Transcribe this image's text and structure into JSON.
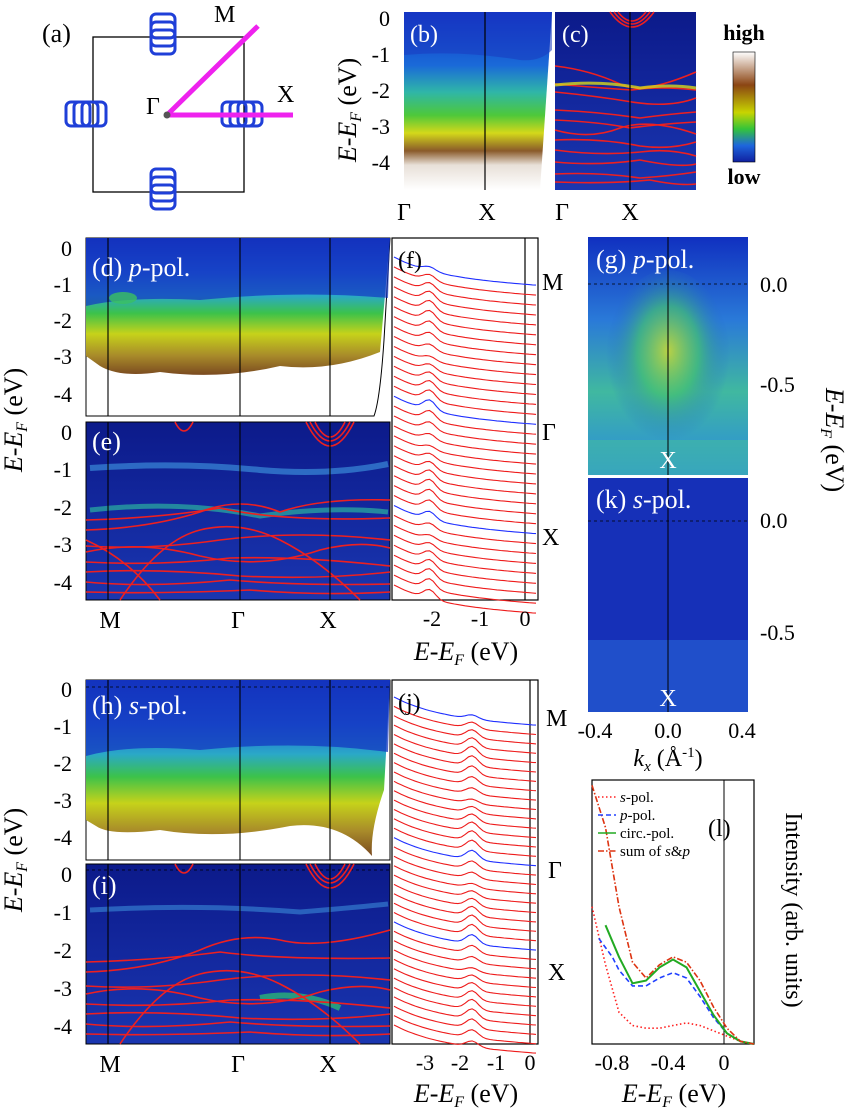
{
  "figure": {
    "panels": {
      "a": "(a)",
      "b": "(b)",
      "c": "(c)",
      "d": "(d)",
      "e": "(e)",
      "f": "(f)",
      "g": "(g)",
      "h": "(h)",
      "i": "(i)",
      "j": "(j)",
      "k": "(k)",
      "l": "(l)"
    },
    "pol_p": "-pol.",
    "pol_s": "-pol.",
    "pol_p_letter": "p",
    "pol_s_letter": "s"
  },
  "brillouin": {
    "points": {
      "gamma": "Γ",
      "m": "M",
      "x": "X"
    },
    "colors": {
      "pockets": "#1f3fd8",
      "path": "#ee22ee"
    }
  },
  "colorbar": {
    "high": "high",
    "low": "low",
    "stops": [
      "#ffffff",
      "#8b4513",
      "#c8d400",
      "#34c43a",
      "#1e66dd",
      "#1020a0"
    ]
  },
  "axes": {
    "energy_label": "E-E",
    "energy_sub": "F",
    "energy_unit": " (eV)",
    "energy_ticks_top": [
      "0",
      "-1",
      "-2",
      "-3",
      "-4"
    ],
    "energy_ticks_mid": [
      "0",
      "-1",
      "-2",
      "-3",
      "-4"
    ],
    "k_path_bc": [
      "Γ",
      "X",
      "Γ",
      "X"
    ],
    "k_path_de": [
      "M",
      "Γ",
      "X"
    ],
    "k_path_hi": [
      "M",
      "Γ",
      "X"
    ],
    "f_ticks": [
      "-2",
      "-1",
      "0"
    ],
    "j_ticks": [
      "-3",
      "-2",
      "-1",
      "0"
    ],
    "edc_labels": [
      "M",
      "Γ",
      "X"
    ],
    "gk_ticks_y": [
      "0.0",
      "-0.5"
    ],
    "kx_ticks": [
      "-0.4",
      "0.0",
      "0.4"
    ],
    "kx_label": "k",
    "kx_sub": "x",
    "kx_unit": " (Å",
    "kx_exp": "-1",
    "kx_close": ")",
    "gk_x_point": "X",
    "l_ticks": [
      "-0.8",
      "-0.4",
      "0"
    ],
    "intensity_label": "Intensity (arb. units)"
  },
  "chart_data": {
    "type": "line",
    "title": "(l)",
    "xlabel": "E-EF (eV)",
    "ylabel": "Intensity (arb. units)",
    "xlim": [
      -1.0,
      0.2
    ],
    "ylim": [
      0,
      1
    ],
    "series": [
      {
        "name": "s-pol.",
        "color": "#ff2020",
        "style": "dotted",
        "x": [
          -1.0,
          -0.9,
          -0.8,
          -0.7,
          -0.6,
          -0.5,
          -0.4,
          -0.3,
          -0.2,
          -0.1,
          0.0,
          0.1,
          0.2
        ],
        "y": [
          0.52,
          0.3,
          0.12,
          0.07,
          0.06,
          0.06,
          0.07,
          0.08,
          0.07,
          0.05,
          0.03,
          0.01,
          0.0
        ]
      },
      {
        "name": "p-pol.",
        "color": "#2040ff",
        "style": "dashed",
        "x": [
          -0.95,
          -0.85,
          -0.8,
          -0.7,
          -0.6,
          -0.5,
          -0.4,
          -0.3,
          -0.2,
          -0.1,
          0.0,
          0.1,
          0.2
        ],
        "y": [
          0.4,
          0.33,
          0.28,
          0.22,
          0.22,
          0.25,
          0.27,
          0.25,
          0.18,
          0.1,
          0.04,
          0.01,
          0.0
        ]
      },
      {
        "name": "circ.-pol.",
        "color": "#22aa22",
        "style": "solid",
        "x": [
          -0.9,
          -0.8,
          -0.7,
          -0.6,
          -0.5,
          -0.4,
          -0.3,
          -0.2,
          -0.1,
          0.0,
          0.1,
          0.2
        ],
        "y": [
          0.45,
          0.33,
          0.23,
          0.24,
          0.29,
          0.32,
          0.29,
          0.2,
          0.11,
          0.04,
          0.01,
          0.0
        ]
      },
      {
        "name": "sum of s&p",
        "color": "#dd3311",
        "style": "dashdot",
        "x": [
          -1.0,
          -0.9,
          -0.8,
          -0.7,
          -0.6,
          -0.5,
          -0.4,
          -0.3,
          -0.2,
          -0.1,
          0.0,
          0.1,
          0.2
        ],
        "y": [
          0.98,
          0.82,
          0.52,
          0.31,
          0.25,
          0.3,
          0.33,
          0.31,
          0.24,
          0.14,
          0.06,
          0.01,
          0.0
        ]
      }
    ],
    "legend": {
      "s": "s",
      "s_rest": "-pol.",
      "p": "p",
      "p_rest": "-pol.",
      "circ": "circ.-pol.",
      "sum_prefix": "sum of ",
      "sum_s": "s",
      "sum_amp": "&",
      "sum_p": "p"
    }
  }
}
